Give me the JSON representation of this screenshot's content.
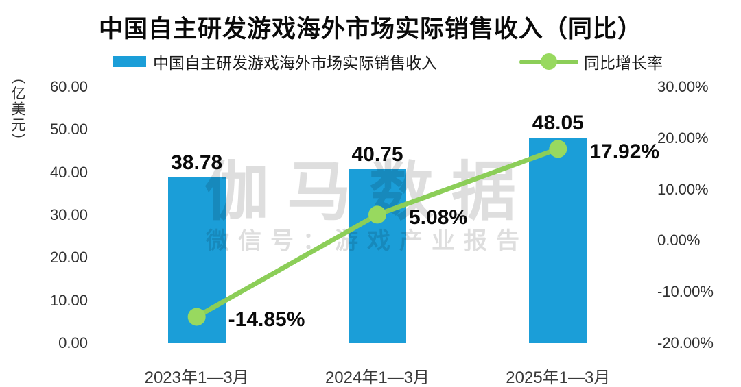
{
  "title": "中国自主研发游戏海外市场实际销售收入（同比）",
  "watermark": {
    "line1": "伽马数据",
    "line2": "微信号：游戏产业报告",
    "color": "rgba(0,0,0,0.13)"
  },
  "colors": {
    "bar": "#1B9ED8",
    "line": "#8CCE58",
    "marker": "#98D95F"
  },
  "chart_data": {
    "type": "combo",
    "title": "中国自主研发游戏海外市场实际销售收入（同比）",
    "categories": [
      "2023年1—3月",
      "2024年1—3月",
      "2025年1—3月"
    ],
    "series": [
      {
        "name": "中国自主研发游戏海外市场实际销售收入",
        "type": "bar",
        "axis": "left",
        "color": "#1B9ED8",
        "values": [
          38.78,
          40.75,
          48.05
        ],
        "labels": [
          "38.78",
          "40.75",
          "48.05"
        ]
      },
      {
        "name": "同比增长率",
        "type": "line",
        "axis": "right",
        "color": "#8CCE58",
        "marker_color": "#98D95F",
        "values": [
          -14.85,
          5.08,
          17.92
        ],
        "labels": [
          "-14.85%",
          "5.08%",
          "17.92%"
        ]
      }
    ],
    "left_axis": {
      "unit": "（亿美元）",
      "min": 0,
      "max": 60,
      "ticks": [
        {
          "label": "60.00",
          "value": 60
        },
        {
          "label": "50.00",
          "value": 50
        },
        {
          "label": "40.00",
          "value": 40
        },
        {
          "label": "30.00",
          "value": 30
        },
        {
          "label": "20.00",
          "value": 20
        },
        {
          "label": "10.00",
          "value": 10
        },
        {
          "label": "0.00",
          "value": 0
        }
      ]
    },
    "right_axis": {
      "min": -20,
      "max": 30,
      "ticks": [
        {
          "label": "30.00%",
          "value": 30
        },
        {
          "label": "20.00%",
          "value": 20
        },
        {
          "label": "10.00%",
          "value": 10
        },
        {
          "label": "0.00%",
          "value": 0
        },
        {
          "label": "-10.00%",
          "value": -10
        },
        {
          "label": "-20.00%",
          "value": -20
        }
      ]
    },
    "grid": false,
    "legend_position": "top"
  }
}
